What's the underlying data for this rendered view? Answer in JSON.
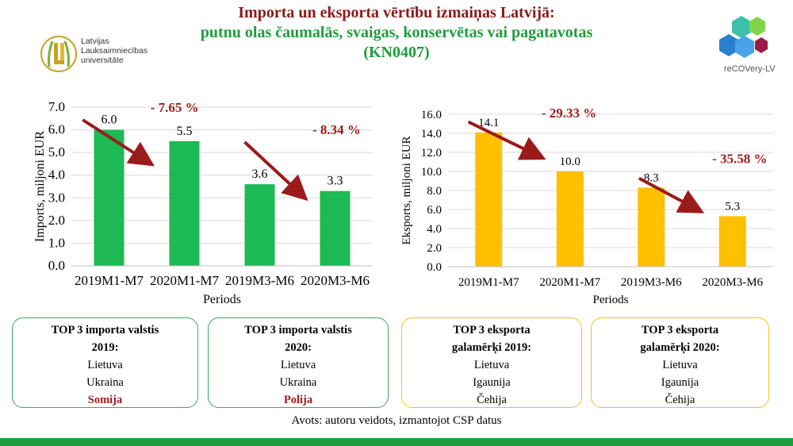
{
  "title": {
    "line1": "Importa un eksporta vērtību izmaiņas Latvijā:",
    "line2": "putnu olas čaumalās, svaigas, konservētas vai pagatavotas",
    "line3": "(KN0407)"
  },
  "logo_left": {
    "name": "Latvijas\nLauksaimniecības\nuniversitāte"
  },
  "logo_right": {
    "name": "reCOVery-LV"
  },
  "chart_data": [
    {
      "type": "bar",
      "categories": [
        "2019M1-M7",
        "2020M1-M7",
        "2019M3-M6",
        "2020M3-M6"
      ],
      "values": [
        6.0,
        5.5,
        3.6,
        3.3
      ],
      "value_labels": [
        "6.0",
        "5.5",
        "3.6",
        "3.3"
      ],
      "ylabel": "Imports, miljoni EUR",
      "xlabel": "Periods",
      "ylim": [
        0,
        7
      ],
      "ytick_step": 1,
      "ytick_decimals": 1,
      "bar_color": "#1db954",
      "grid": true,
      "annotations": [
        "- 7.65 %",
        "- 8.34 %"
      ],
      "annotation_color": "#9b1b1b"
    },
    {
      "type": "bar",
      "categories": [
        "2019M1-M7",
        "2020M1-M7",
        "2019M3-M6",
        "2020M3-M6"
      ],
      "values": [
        14.1,
        10.0,
        8.3,
        5.3
      ],
      "value_labels": [
        "14.1",
        "10.0",
        "8.3",
        "5.3"
      ],
      "ylabel": "Eksports, miljoni EUR",
      "xlabel": "Periods",
      "ylim": [
        0,
        16
      ],
      "ytick_step": 2,
      "ytick_decimals": 1,
      "bar_color": "#ffc000",
      "grid": true,
      "annotations": [
        "- 29.33 %",
        "- 35.58 %"
      ],
      "annotation_color": "#9b1b1b"
    }
  ],
  "boxes": [
    {
      "heading1": "TOP 3 importa valstis",
      "heading2": "2019:",
      "items": [
        "Lietuva",
        "Ukraina"
      ],
      "highlight": "Somija"
    },
    {
      "heading1": "TOP 3 importa valstis",
      "heading2": "2020:",
      "items": [
        "Lietuva",
        "Ukraina"
      ],
      "highlight": "Polija"
    },
    {
      "heading1": "TOP 3 eksporta",
      "heading2": "galamērķi 2019:",
      "items": [
        "Lietuva",
        "Igaunija",
        "Čehija"
      ],
      "highlight": ""
    },
    {
      "heading1": "TOP 3 eksporta",
      "heading2": "galamērķi 2020:",
      "items": [
        "Lietuva",
        "Igaunija",
        "Čehija"
      ],
      "highlight": ""
    }
  ],
  "source": "Avots: autoru veidots, izmantojot CSP datus",
  "colors": {
    "accent_green": "#1e9e3a",
    "title_red": "#8b1a1a"
  }
}
